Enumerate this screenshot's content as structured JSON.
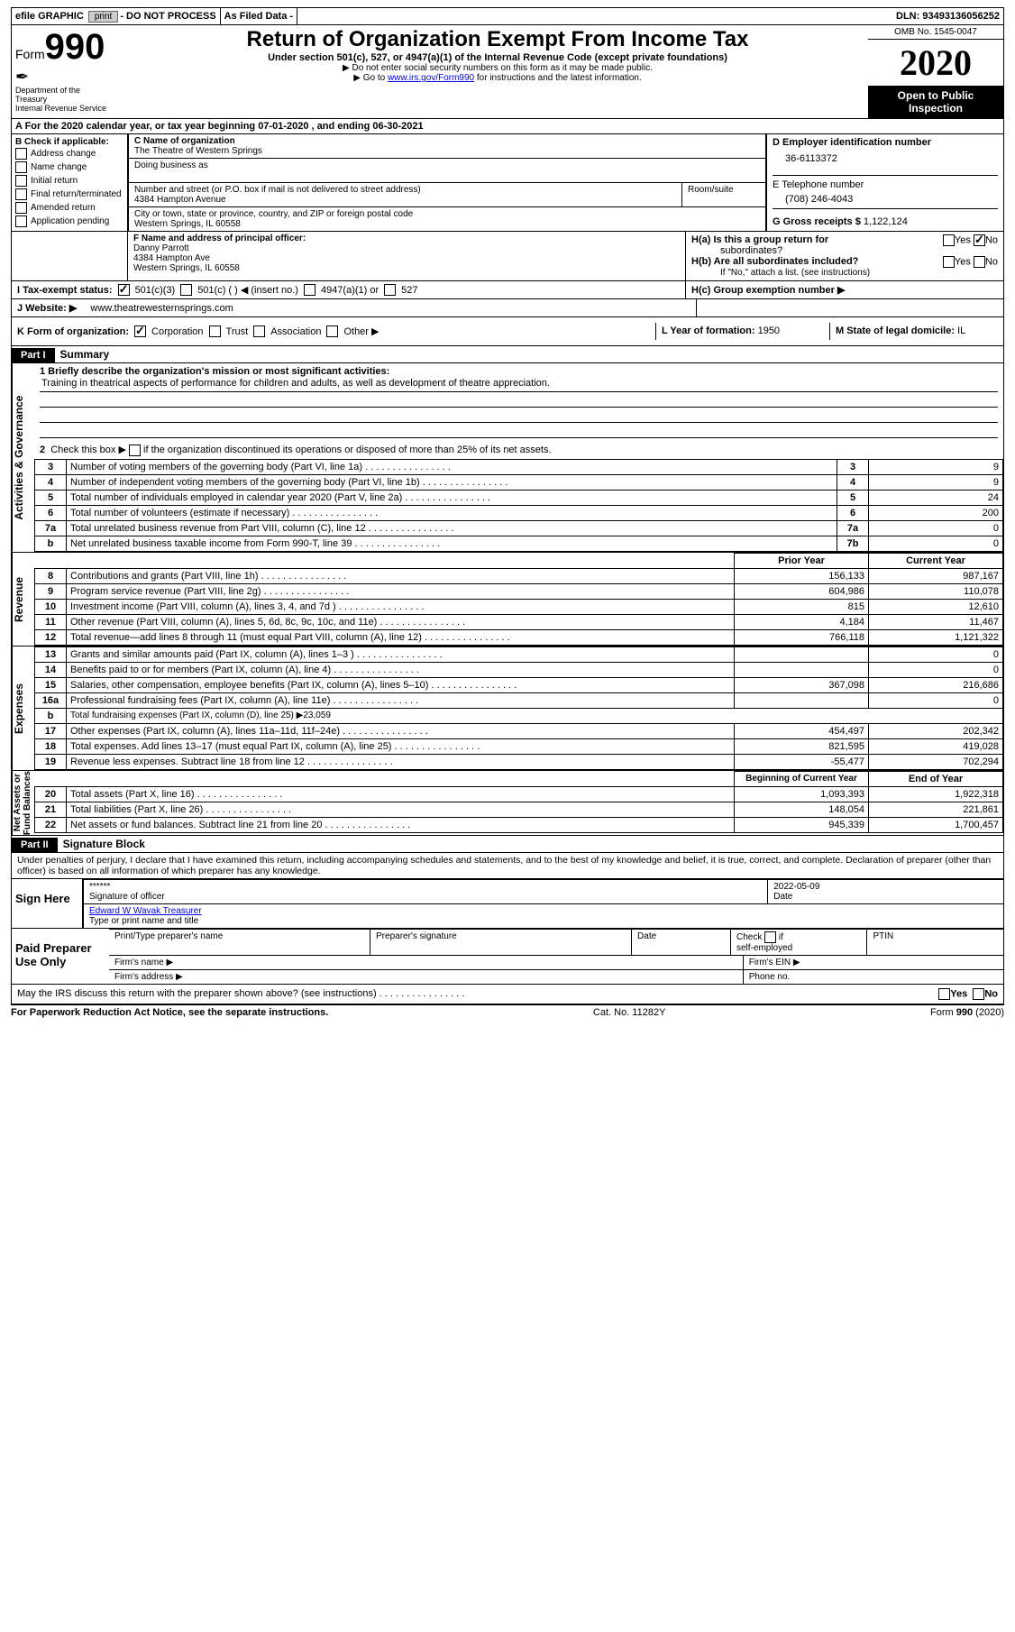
{
  "topbar": {
    "efile": "efile GRAPHIC",
    "print_btn": "print",
    "donot": "- DO NOT PROCESS",
    "asfiled": "As Filed Data -",
    "dln_label": "DLN:",
    "dln": "93493136056252"
  },
  "header": {
    "form_prefix": "Form",
    "form_number": "990",
    "dept1": "Department of the",
    "dept2": "Treasury",
    "dept3": "Internal Revenue Service",
    "title": "Return of Organization Exempt From Income Tax",
    "sub1": "Under section 501(c), 527, or 4947(a)(1) of the Internal Revenue Code (except private foundations)",
    "sub2": "▶ Do not enter social security numbers on this form as it may be made public.",
    "sub3_pre": "▶ Go to ",
    "sub3_link": "www.irs.gov/Form990",
    "sub3_post": " for instructions and the latest information.",
    "omb": "OMB No. 1545-0047",
    "year": "2020",
    "open": "Open to Public Inspection"
  },
  "sectionA": {
    "text": "A   For the 2020 calendar year, or tax year beginning 07-01-2020   , and ending 06-30-2021"
  },
  "sectionB": {
    "title": "B Check if applicable:",
    "items": [
      "Address change",
      "Name change",
      "Initial return",
      "Final return/terminated",
      "Amended return",
      "Application pending"
    ]
  },
  "sectionC": {
    "name_label": "C Name of organization",
    "name": "The Theatre of Western Springs",
    "dba_label": "Doing business as",
    "dba": "",
    "street_label": "Number and street (or P.O. box if mail is not delivered to street address)",
    "room_label": "Room/suite",
    "street": "4384 Hampton Avenue",
    "city_label": "City or town, state or province, country, and ZIP or foreign postal code",
    "city": "Western Springs, IL  60558"
  },
  "sectionDEG": {
    "d_label": "D Employer identification number",
    "d_val": "36-6113372",
    "e_label": "E Telephone number",
    "e_val": "(708) 246-4043",
    "g_label": "G Gross receipts $",
    "g_val": "1,122,124"
  },
  "sectionF": {
    "label": "F   Name and address of principal officer:",
    "line1": "Danny Parrott",
    "line2": "4384 Hampton Ave",
    "line3": "Western Springs, IL  60558"
  },
  "sectionH": {
    "a_label": "H(a)  Is this a group return for",
    "a_sub": "subordinates?",
    "b_label": "H(b)  Are all subordinates included?",
    "b_note": "If \"No,\" attach a list. (see instructions)",
    "c_label": "H(c)  Group exemption number ▶",
    "yes": "Yes",
    "no": "No"
  },
  "sectionI": {
    "label": "I   Tax-exempt status:",
    "opt1": "501(c)(3)",
    "opt2": "501(c) (   ) ◀ (insert no.)",
    "opt3": "4947(a)(1) or",
    "opt4": "527"
  },
  "sectionJ": {
    "label": "J   Website: ▶",
    "val": "www.theatrewesternsprings.com"
  },
  "sectionK": {
    "label": "K Form of organization:",
    "opts": [
      "Corporation",
      "Trust",
      "Association",
      "Other ▶"
    ]
  },
  "sectionLM": {
    "l_label": "L Year of formation:",
    "l_val": "1950",
    "m_label": "M State of legal domicile:",
    "m_val": "IL"
  },
  "part1": {
    "label": "Part I",
    "title": "Summary",
    "q1_label": "1  Briefly describe the organization's mission or most significant activities:",
    "q1_val": "Training in theatrical aspects of performance for children and adults, as well as development of theatre appreciation.",
    "q2": "2   Check this box ▶        if the organization discontinued its operations or disposed of more than 25% of its net assets.",
    "gov_rows": [
      {
        "n": "3",
        "t": "Number of voting members of the governing body (Part VI, line 1a)",
        "c": "3",
        "v": "9"
      },
      {
        "n": "4",
        "t": "Number of independent voting members of the governing body (Part VI, line 1b)",
        "c": "4",
        "v": "9"
      },
      {
        "n": "5",
        "t": "Total number of individuals employed in calendar year 2020 (Part V, line 2a)",
        "c": "5",
        "v": "24"
      },
      {
        "n": "6",
        "t": "Total number of volunteers (estimate if necessary)",
        "c": "6",
        "v": "200"
      },
      {
        "n": "7a",
        "t": "Total unrelated business revenue from Part VIII, column (C), line 12",
        "c": "7a",
        "v": "0"
      },
      {
        "n": "b",
        "t": "Net unrelated business taxable income from Form 990-T, line 39",
        "c": "7b",
        "v": "0"
      }
    ],
    "prior_hdr": "Prior Year",
    "current_hdr": "Current Year",
    "rev_rows": [
      {
        "n": "8",
        "t": "Contributions and grants (Part VIII, line 1h)",
        "p": "156,133",
        "c": "987,167"
      },
      {
        "n": "9",
        "t": "Program service revenue (Part VIII, line 2g)",
        "p": "604,986",
        "c": "110,078"
      },
      {
        "n": "10",
        "t": "Investment income (Part VIII, column (A), lines 3, 4, and 7d )",
        "p": "815",
        "c": "12,610"
      },
      {
        "n": "11",
        "t": "Other revenue (Part VIII, column (A), lines 5, 6d, 8c, 9c, 10c, and 11e)",
        "p": "4,184",
        "c": "11,467"
      },
      {
        "n": "12",
        "t": "Total revenue—add lines 8 through 11 (must equal Part VIII, column (A), line 12)",
        "p": "766,118",
        "c": "1,121,322"
      }
    ],
    "exp_rows": [
      {
        "n": "13",
        "t": "Grants and similar amounts paid (Part IX, column (A), lines 1–3 )",
        "p": "",
        "c": "0"
      },
      {
        "n": "14",
        "t": "Benefits paid to or for members (Part IX, column (A), line 4)",
        "p": "",
        "c": "0"
      },
      {
        "n": "15",
        "t": "Salaries, other compensation, employee benefits (Part IX, column (A), lines 5–10)",
        "p": "367,098",
        "c": "216,686"
      },
      {
        "n": "16a",
        "t": "Professional fundraising fees (Part IX, column (A), line 11e)",
        "p": "",
        "c": "0"
      },
      {
        "n": "b",
        "t": "Total fundraising expenses (Part IX, column (D), line 25) ▶23,059",
        "p": "—",
        "c": "—"
      },
      {
        "n": "17",
        "t": "Other expenses (Part IX, column (A), lines 11a–11d, 11f–24e)",
        "p": "454,497",
        "c": "202,342"
      },
      {
        "n": "18",
        "t": "Total expenses. Add lines 13–17 (must equal Part IX, column (A), line 25)",
        "p": "821,595",
        "c": "419,028"
      },
      {
        "n": "19",
        "t": "Revenue less expenses. Subtract line 18 from line 12",
        "p": "-55,477",
        "c": "702,294"
      }
    ],
    "bal_hdr1": "Beginning of Current Year",
    "bal_hdr2": "End of Year",
    "bal_rows": [
      {
        "n": "20",
        "t": "Total assets (Part X, line 16)",
        "p": "1,093,393",
        "c": "1,922,318"
      },
      {
        "n": "21",
        "t": "Total liabilities (Part X, line 26)",
        "p": "148,054",
        "c": "221,861"
      },
      {
        "n": "22",
        "t": "Net assets or fund balances. Subtract line 21 from line 20",
        "p": "945,339",
        "c": "1,700,457"
      }
    ]
  },
  "part2": {
    "label": "Part II",
    "title": "Signature Block",
    "decl": "Under penalties of perjury, I declare that I have examined this return, including accompanying schedules and statements, and to the best of my knowledge and belief, it is true, correct, and complete. Declaration of preparer (other than officer) is based on all information of which preparer has any knowledge.",
    "sign_here": "Sign Here",
    "stars": "******",
    "sig_label": "Signature of officer",
    "date_label": "Date",
    "date_val": "2022-05-09",
    "name": "Edward W Wavak Treasurer",
    "name_label": "Type or print name and title",
    "paid": "Paid Preparer Use Only",
    "pp_name": "Print/Type preparer's name",
    "pp_sig": "Preparer's signature",
    "pp_date": "Date",
    "pp_check": "Check        if self-employed",
    "pp_ptin": "PTIN",
    "firm_name": "Firm's name   ▶",
    "firm_ein": "Firm's EIN ▶",
    "firm_addr": "Firm's address ▶",
    "firm_phone": "Phone no.",
    "discuss": "May the IRS discuss this return with the preparer shown above? (see instructions)",
    "yes": "Yes",
    "no": "No"
  },
  "footer": {
    "left": "For Paperwork Reduction Act Notice, see the separate instructions.",
    "mid": "Cat. No. 11282Y",
    "right": "Form 990 (2020)"
  }
}
